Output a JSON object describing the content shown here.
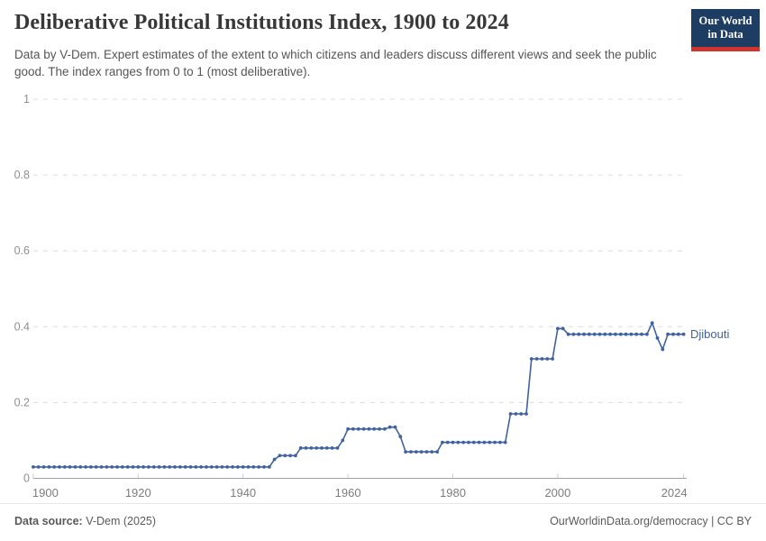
{
  "header": {
    "title": "Deliberative Political Institutions Index, 1900 to 2024",
    "subtitle": "Data by V-Dem. Expert estimates of the extent to which citizens and leaders discuss different views and seek the public good. The index ranges from 0 to 1 (most deliberative).",
    "logo": {
      "line1": "Our World",
      "line2": "in Data"
    }
  },
  "footer": {
    "source_label": "Data source:",
    "source_value": "V-Dem (2025)",
    "right_text": "OurWorldinData.org/democracy | CC BY"
  },
  "colors": {
    "series": "#4062a3",
    "grid": "#dcdcdc",
    "axis": "#a0a0a0",
    "tick": "#c9c9c9",
    "x_label": "#7d7d7d",
    "y_label": "#8f8f8f",
    "logo_bg": "#1d3d63",
    "logo_accent": "#d0342c"
  },
  "chart_data": {
    "type": "line",
    "title": "Deliberative Political Institutions Index, 1900 to 2024",
    "xlabel": "",
    "ylabel": "",
    "x": {
      "min": 1900,
      "max": 2024,
      "ticks": [
        1900,
        1920,
        1940,
        1960,
        1980,
        2000,
        2024
      ]
    },
    "y": {
      "min": 0,
      "max": 1,
      "ticks": [
        0,
        0.2,
        0.4,
        0.6,
        0.8,
        1
      ],
      "grid": "dashed"
    },
    "legend_position": "end-of-line",
    "series": [
      {
        "name": "Djibouti",
        "color": "#4062a3",
        "runs_note": "each run is [startYear, endYear, indexValue]; one data point per year",
        "runs": [
          [
            1900,
            1945,
            0.03
          ],
          [
            1946,
            1946,
            0.05
          ],
          [
            1947,
            1950,
            0.06
          ],
          [
            1951,
            1958,
            0.08
          ],
          [
            1959,
            1959,
            0.1
          ],
          [
            1960,
            1967,
            0.13
          ],
          [
            1968,
            1969,
            0.135
          ],
          [
            1970,
            1970,
            0.11
          ],
          [
            1971,
            1977,
            0.07
          ],
          [
            1978,
            1990,
            0.095
          ],
          [
            1991,
            1994,
            0.17
          ],
          [
            1995,
            1999,
            0.315
          ],
          [
            2000,
            2001,
            0.395
          ],
          [
            2002,
            2017,
            0.38
          ],
          [
            2018,
            2018,
            0.41
          ],
          [
            2019,
            2019,
            0.37
          ],
          [
            2020,
            2020,
            0.34
          ],
          [
            2021,
            2024,
            0.38
          ]
        ]
      }
    ]
  }
}
